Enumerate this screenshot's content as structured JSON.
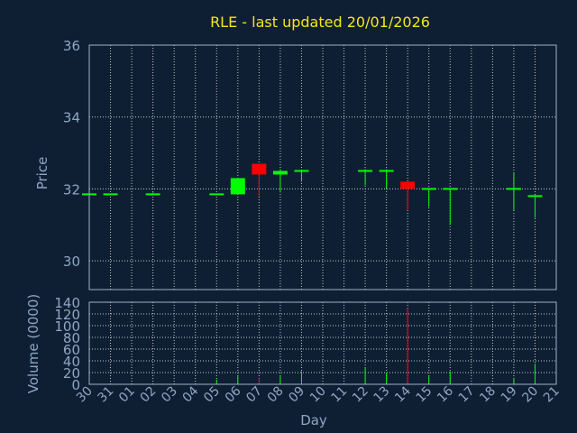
{
  "chart_data": {
    "type": "candlestick",
    "title": "RLE - last updated 20/01/2026",
    "price_ylabel": "Price",
    "volume_ylabel": "Volume (0000)",
    "xlabel": "Day",
    "days": [
      "30",
      "31",
      "01",
      "02",
      "03",
      "04",
      "05",
      "06",
      "07",
      "08",
      "09",
      "10",
      "11",
      "12",
      "13",
      "14",
      "15",
      "16",
      "17",
      "18",
      "19",
      "20",
      "21"
    ],
    "price_ylim": [
      29.2,
      36
    ],
    "price_ticks": [
      30,
      32,
      34,
      36
    ],
    "volume_ylim": [
      0,
      140
    ],
    "volume_ticks": [
      0,
      20,
      40,
      60,
      80,
      100,
      120,
      140
    ],
    "up_color": "#00ff00",
    "down_color": "#ff0000",
    "candles": [
      {
        "day": "30",
        "open": 31.85,
        "close": 31.85,
        "high": 31.85,
        "low": 31.85,
        "volume": 0
      },
      {
        "day": "31",
        "open": 31.85,
        "close": 31.85,
        "high": 31.85,
        "low": 31.85,
        "volume": 0
      },
      {
        "day": "02",
        "open": 31.85,
        "close": 31.85,
        "high": 31.9,
        "low": 31.85,
        "volume": 0
      },
      {
        "day": "05",
        "open": 31.85,
        "close": 31.85,
        "high": 31.85,
        "low": 31.85,
        "volume": 8
      },
      {
        "day": "06",
        "open": 31.85,
        "close": 32.3,
        "high": 32.3,
        "low": 31.85,
        "volume": 15
      },
      {
        "day": "07",
        "open": 32.7,
        "close": 32.4,
        "high": 32.7,
        "low": 31.8,
        "volume": 10
      },
      {
        "day": "08",
        "open": 32.4,
        "close": 32.5,
        "high": 32.55,
        "low": 31.9,
        "volume": 14
      },
      {
        "day": "09",
        "open": 32.5,
        "close": 32.5,
        "high": 32.5,
        "low": 32.2,
        "volume": 22
      },
      {
        "day": "12",
        "open": 32.5,
        "close": 32.5,
        "high": 32.55,
        "low": 32.1,
        "volume": 28
      },
      {
        "day": "13",
        "open": 32.5,
        "close": 32.5,
        "high": 32.55,
        "low": 32.0,
        "volume": 20
      },
      {
        "day": "14",
        "open": 32.2,
        "close": 32.0,
        "high": 32.2,
        "low": 31.4,
        "volume": 130
      },
      {
        "day": "15",
        "open": 32.0,
        "close": 32.0,
        "high": 32.0,
        "low": 31.5,
        "volume": 15
      },
      {
        "day": "16",
        "open": 32.0,
        "close": 32.0,
        "high": 32.0,
        "low": 31.0,
        "volume": 22
      },
      {
        "day": "19",
        "open": 32.0,
        "close": 32.0,
        "high": 32.45,
        "low": 31.4,
        "volume": 10
      },
      {
        "day": "20",
        "open": 31.8,
        "close": 31.8,
        "high": 31.8,
        "low": 31.2,
        "volume": 35
      }
    ]
  }
}
